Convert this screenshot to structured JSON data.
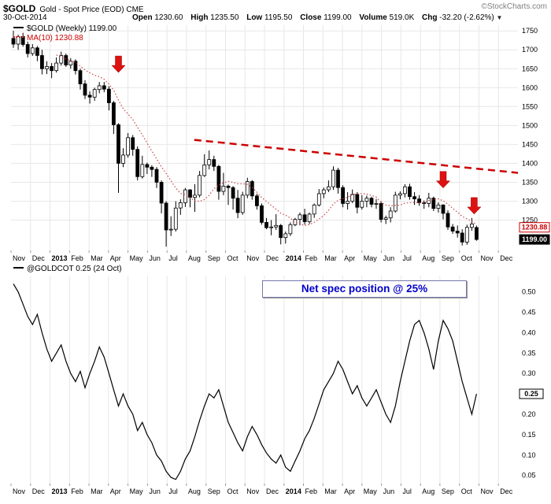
{
  "header": {
    "symbol": "$GOLD",
    "description": "Gold - Spot Price (EOD) CME",
    "copyright": "©StockCharts.com",
    "date": "30-Oct-2014",
    "quote": {
      "open_label": "Open",
      "open": "1230.60",
      "high_label": "High",
      "high": "1235.50",
      "low_label": "Low",
      "low": "1195.50",
      "close_label": "Close",
      "close": "1199.00",
      "volume_label": "Volume",
      "volume": "519.0K",
      "chg_label": "Chg",
      "chg": "-32.20 (-2.62%)",
      "chg_arrow": "▼"
    }
  },
  "price_panel": {
    "legend_symbol": "$GOLD (Weekly) 1199.00",
    "legend_ma": "MA(10) 1230.88",
    "ma_price_box": "1230.88",
    "last_price_box": "1199.00"
  },
  "cot_panel": {
    "legend": "@GOLDCOT 0.25 (24 Oct)",
    "annotation": "Net spec position @ 25%",
    "last_value_box": "0.25"
  },
  "colors": {
    "grid": "#e7e7e7",
    "tick": "#999999",
    "candle": "#000000",
    "ma_line": "#cc4444",
    "trendline": "#cc0000",
    "arrow": "#dd1111",
    "ma_box_text": "#cc0000",
    "annotation_text": "#0000cc",
    "cot_line": "#000000"
  },
  "chart_data": [
    {
      "type": "candlestick",
      "title": "$GOLD (Weekly)",
      "x_axis_months": [
        "Nov",
        "Dec",
        "2013",
        "Feb",
        "Mar",
        "Apr",
        "May",
        "Jun",
        "Jul",
        "Aug",
        "Sep",
        "Oct",
        "Nov",
        "Dec",
        "2014",
        "Feb",
        "Mar",
        "Apr",
        "May",
        "Jun",
        "Jul",
        "Aug",
        "Sep",
        "Oct",
        "Nov",
        "Dec"
      ],
      "months_of_data": 24,
      "y_ticks": [
        1750,
        1700,
        1650,
        1600,
        1550,
        1500,
        1450,
        1400,
        1350,
        1300,
        1250
      ],
      "ylim": [
        1170,
        1765
      ],
      "ma_period": 10,
      "ma_last": 1230.88,
      "last_close": 1199.0,
      "trendline": {
        "start_month": 9.4,
        "start_price": 1462,
        "end_month": 26,
        "end_price": 1375
      },
      "arrows": [
        {
          "candle": 22,
          "tip_price": 1640
        },
        {
          "candle": 90,
          "tip_price": 1335
        },
        {
          "candle": 96.5,
          "tip_price": 1266
        }
      ],
      "ohlc": [
        [
          1730,
          1750,
          1705,
          1715
        ],
        [
          1715,
          1740,
          1700,
          1735
        ],
        [
          1735,
          1745,
          1708,
          1714
        ],
        [
          1714,
          1722,
          1680,
          1690
        ],
        [
          1690,
          1715,
          1684,
          1705
        ],
        [
          1705,
          1710,
          1670,
          1685
        ],
        [
          1685,
          1700,
          1635,
          1650
        ],
        [
          1650,
          1670,
          1636,
          1656
        ],
        [
          1656,
          1665,
          1625,
          1645
        ],
        [
          1645,
          1680,
          1640,
          1665
        ],
        [
          1665,
          1695,
          1658,
          1685
        ],
        [
          1685,
          1690,
          1655,
          1660
        ],
        [
          1660,
          1678,
          1650,
          1670
        ],
        [
          1670,
          1675,
          1635,
          1645
        ],
        [
          1645,
          1650,
          1595,
          1610
        ],
        [
          1610,
          1620,
          1570,
          1580
        ],
        [
          1580,
          1590,
          1558,
          1575
        ],
        [
          1575,
          1600,
          1565,
          1595
        ],
        [
          1595,
          1615,
          1585,
          1605
        ],
        [
          1605,
          1615,
          1588,
          1596
        ],
        [
          1596,
          1604,
          1540,
          1560
        ],
        [
          1560,
          1565,
          1478,
          1502
        ],
        [
          1502,
          1506,
          1322,
          1400
        ],
        [
          1400,
          1440,
          1390,
          1422
        ],
        [
          1422,
          1480,
          1415,
          1468
        ],
        [
          1468,
          1475,
          1420,
          1437
        ],
        [
          1437,
          1445,
          1355,
          1365
        ],
        [
          1365,
          1420,
          1360,
          1397
        ],
        [
          1397,
          1402,
          1372,
          1390
        ],
        [
          1390,
          1395,
          1364,
          1384
        ],
        [
          1384,
          1390,
          1335,
          1350
        ],
        [
          1350,
          1355,
          1268,
          1295
        ],
        [
          1295,
          1300,
          1180,
          1224
        ],
        [
          1224,
          1260,
          1208,
          1226
        ],
        [
          1226,
          1300,
          1220,
          1282
        ],
        [
          1282,
          1305,
          1264,
          1296
        ],
        [
          1296,
          1335,
          1285,
          1330
        ],
        [
          1330,
          1332,
          1284,
          1310
        ],
        [
          1310,
          1345,
          1272,
          1316
        ],
        [
          1316,
          1380,
          1310,
          1368
        ],
        [
          1368,
          1424,
          1364,
          1396
        ],
        [
          1396,
          1434,
          1384,
          1410
        ],
        [
          1410,
          1420,
          1380,
          1392
        ],
        [
          1392,
          1396,
          1304,
          1326
        ],
        [
          1326,
          1375,
          1316,
          1340
        ],
        [
          1340,
          1344,
          1290,
          1336
        ],
        [
          1336,
          1340,
          1278,
          1308
        ],
        [
          1308,
          1330,
          1255,
          1270
        ],
        [
          1270,
          1325,
          1264,
          1316
        ],
        [
          1316,
          1362,
          1308,
          1352
        ],
        [
          1352,
          1356,
          1304,
          1314
        ],
        [
          1314,
          1320,
          1278,
          1288
        ],
        [
          1288,
          1294,
          1238,
          1244
        ],
        [
          1244,
          1256,
          1226,
          1230
        ],
        [
          1230,
          1250,
          1210,
          1232
        ],
        [
          1232,
          1266,
          1224,
          1236
        ],
        [
          1236,
          1240,
          1186,
          1204
        ],
        [
          1204,
          1220,
          1188,
          1214
        ],
        [
          1214,
          1244,
          1208,
          1238
        ],
        [
          1238,
          1256,
          1234,
          1252
        ],
        [
          1252,
          1270,
          1236,
          1264
        ],
        [
          1264,
          1280,
          1238,
          1246
        ],
        [
          1246,
          1270,
          1240,
          1266
        ],
        [
          1266,
          1294,
          1256,
          1290
        ],
        [
          1290,
          1332,
          1286,
          1320
        ],
        [
          1320,
          1336,
          1308,
          1330
        ],
        [
          1330,
          1355,
          1324,
          1338
        ],
        [
          1338,
          1392,
          1330,
          1382
        ],
        [
          1382,
          1388,
          1320,
          1336
        ],
        [
          1336,
          1342,
          1284,
          1294
        ],
        [
          1294,
          1324,
          1278,
          1300
        ],
        [
          1300,
          1331,
          1295,
          1318
        ],
        [
          1318,
          1324,
          1268,
          1284
        ],
        [
          1284,
          1316,
          1278,
          1300
        ],
        [
          1300,
          1315,
          1284,
          1308
        ],
        [
          1308,
          1312,
          1284,
          1292
        ],
        [
          1292,
          1306,
          1280,
          1294
        ],
        [
          1294,
          1300,
          1244,
          1252
        ],
        [
          1252,
          1262,
          1240,
          1256
        ],
        [
          1256,
          1284,
          1244,
          1274
        ],
        [
          1274,
          1325,
          1270,
          1316
        ],
        [
          1316,
          1326,
          1305,
          1320
        ],
        [
          1320,
          1345,
          1310,
          1338
        ],
        [
          1338,
          1346,
          1304,
          1312
        ],
        [
          1312,
          1324,
          1290,
          1306
        ],
        [
          1306,
          1316,
          1288,
          1296
        ],
        [
          1296,
          1302,
          1280,
          1294
        ],
        [
          1294,
          1322,
          1284,
          1308
        ],
        [
          1308,
          1312,
          1274,
          1281
        ],
        [
          1281,
          1297,
          1270,
          1290
        ],
        [
          1290,
          1292,
          1252,
          1268
        ],
        [
          1268,
          1276,
          1224,
          1232
        ],
        [
          1232,
          1240,
          1214,
          1221
        ],
        [
          1221,
          1236,
          1204,
          1216
        ],
        [
          1216,
          1226,
          1183,
          1192
        ],
        [
          1192,
          1238,
          1185,
          1231
        ],
        [
          1231,
          1256,
          1222,
          1240
        ],
        [
          1230.6,
          1235.5,
          1195.5,
          1199
        ]
      ]
    },
    {
      "type": "line",
      "title": "@GOLDCOT",
      "x_axis_months": [
        "Nov",
        "Dec",
        "2013",
        "Feb",
        "Mar",
        "Apr",
        "May",
        "Jun",
        "Jul",
        "Aug",
        "Sep",
        "Oct",
        "Nov",
        "Dec",
        "2014",
        "Feb",
        "Mar",
        "Apr",
        "May",
        "Jun",
        "Jul",
        "Aug",
        "Sep",
        "Oct",
        "Nov",
        "Dec"
      ],
      "y_ticks": [
        0.5,
        0.45,
        0.4,
        0.35,
        0.3,
        0.25,
        0.2,
        0.15,
        0.1,
        0.05
      ],
      "ylim": [
        0.03,
        0.54
      ],
      "last_value": 0.25,
      "values": [
        0.52,
        0.5,
        0.47,
        0.44,
        0.42,
        0.445,
        0.4,
        0.36,
        0.33,
        0.35,
        0.37,
        0.33,
        0.3,
        0.28,
        0.305,
        0.265,
        0.3,
        0.33,
        0.365,
        0.34,
        0.3,
        0.26,
        0.22,
        0.25,
        0.22,
        0.2,
        0.16,
        0.18,
        0.15,
        0.13,
        0.1,
        0.085,
        0.06,
        0.045,
        0.04,
        0.06,
        0.09,
        0.11,
        0.145,
        0.185,
        0.22,
        0.25,
        0.24,
        0.26,
        0.22,
        0.18,
        0.155,
        0.13,
        0.11,
        0.145,
        0.17,
        0.15,
        0.125,
        0.105,
        0.09,
        0.08,
        0.1,
        0.07,
        0.06,
        0.085,
        0.11,
        0.14,
        0.16,
        0.19,
        0.225,
        0.26,
        0.28,
        0.3,
        0.33,
        0.31,
        0.28,
        0.25,
        0.27,
        0.24,
        0.22,
        0.24,
        0.26,
        0.23,
        0.2,
        0.18,
        0.22,
        0.28,
        0.33,
        0.38,
        0.42,
        0.43,
        0.4,
        0.36,
        0.31,
        0.38,
        0.43,
        0.41,
        0.38,
        0.33,
        0.28,
        0.24,
        0.2,
        0.25
      ]
    }
  ]
}
